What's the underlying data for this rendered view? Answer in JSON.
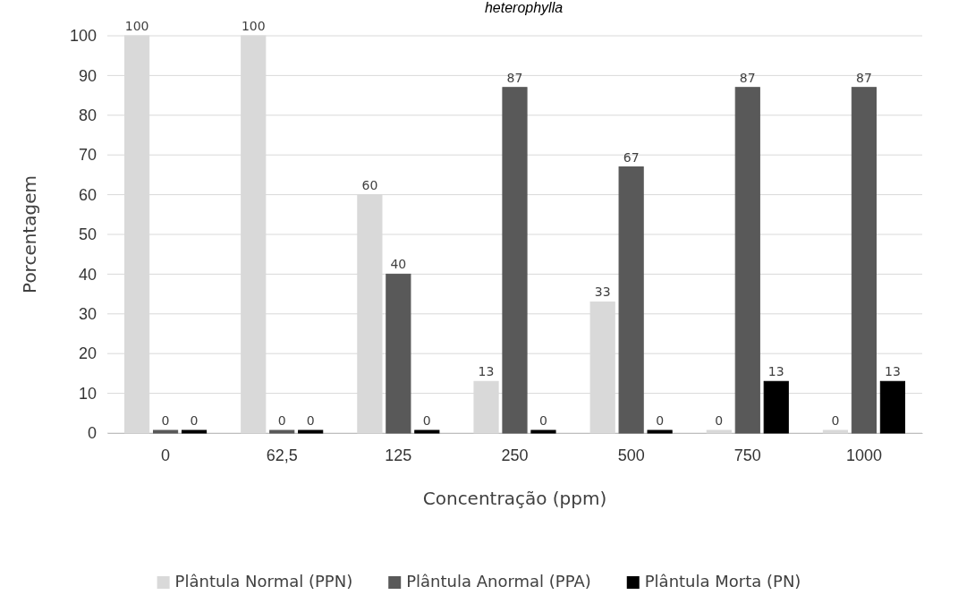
{
  "chart_data": {
    "type": "bar",
    "annotations": [
      "heterophylla"
    ],
    "xlabel": "Concentração (ppm)",
    "ylabel": "Porcentagem",
    "categories": [
      "0",
      "62,5",
      "125",
      "250",
      "500",
      "750",
      "1000"
    ],
    "series": [
      {
        "name": "Plântula Normal (PPN)",
        "color": "#d9d9d9",
        "values": [
          100,
          100,
          60,
          13,
          33,
          0,
          0
        ]
      },
      {
        "name": "Plântula Anormal (PPA)",
        "color": "#595959",
        "values": [
          0,
          0,
          40,
          87,
          67,
          87,
          87
        ]
      },
      {
        "name": "Plântula Morta (PN)",
        "color": "#000000",
        "values": [
          0,
          0,
          0,
          0,
          0,
          13,
          13
        ]
      }
    ],
    "ylim": [
      0,
      100
    ],
    "yticks": [
      0,
      10,
      20,
      30,
      40,
      50,
      60,
      70,
      80,
      90,
      100
    ],
    "grid": "y",
    "data_labels": true,
    "legend": "bottom"
  }
}
